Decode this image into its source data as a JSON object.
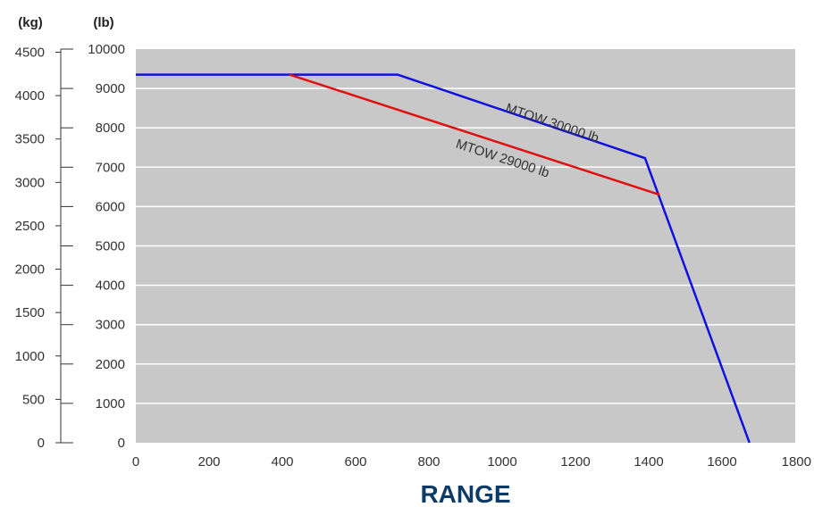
{
  "chart_data": {
    "type": "line",
    "title": "RANGE",
    "xlabel": "",
    "ylabel_left": "(kg)",
    "ylabel_right": "(lb)",
    "xlim": [
      0,
      1800
    ],
    "ylim_lb": [
      0,
      10000
    ],
    "ylim_kg": [
      0,
      4500
    ],
    "x_ticks": [
      "0",
      "200",
      "400",
      "600",
      "800",
      "1000",
      "1200",
      "1400",
      "1600",
      "1800"
    ],
    "x_tick_values": [
      0,
      200,
      400,
      600,
      800,
      1000,
      1200,
      1400,
      1600,
      1800
    ],
    "lb_ticks": [
      "0",
      "1000",
      "2000",
      "3000",
      "4000",
      "5000",
      "6000",
      "7000",
      "8000",
      "9000",
      "10000"
    ],
    "lb_tick_values": [
      0,
      1000,
      2000,
      3000,
      4000,
      5000,
      6000,
      7000,
      8000,
      9000,
      10000
    ],
    "kg_ticks": [
      "0",
      "500",
      "1000",
      "1500",
      "2000",
      "2500",
      "3000",
      "3500",
      "4000",
      "4500"
    ],
    "kg_tick_values": [
      0,
      500,
      1000,
      1500,
      2000,
      2500,
      3000,
      3500,
      4000,
      4500
    ],
    "grid": true,
    "background": "#c8c8c8",
    "series": [
      {
        "name": "MTOW 30000 lb",
        "color": "#1010e0",
        "x": [
          0,
          715,
          1390,
          1675
        ],
        "y": [
          9350,
          9350,
          7230,
          0
        ]
      },
      {
        "name": "MTOW 29000 lb",
        "color": "#e01010",
        "x": [
          420,
          1430
        ],
        "y": [
          9350,
          6300
        ]
      }
    ]
  }
}
